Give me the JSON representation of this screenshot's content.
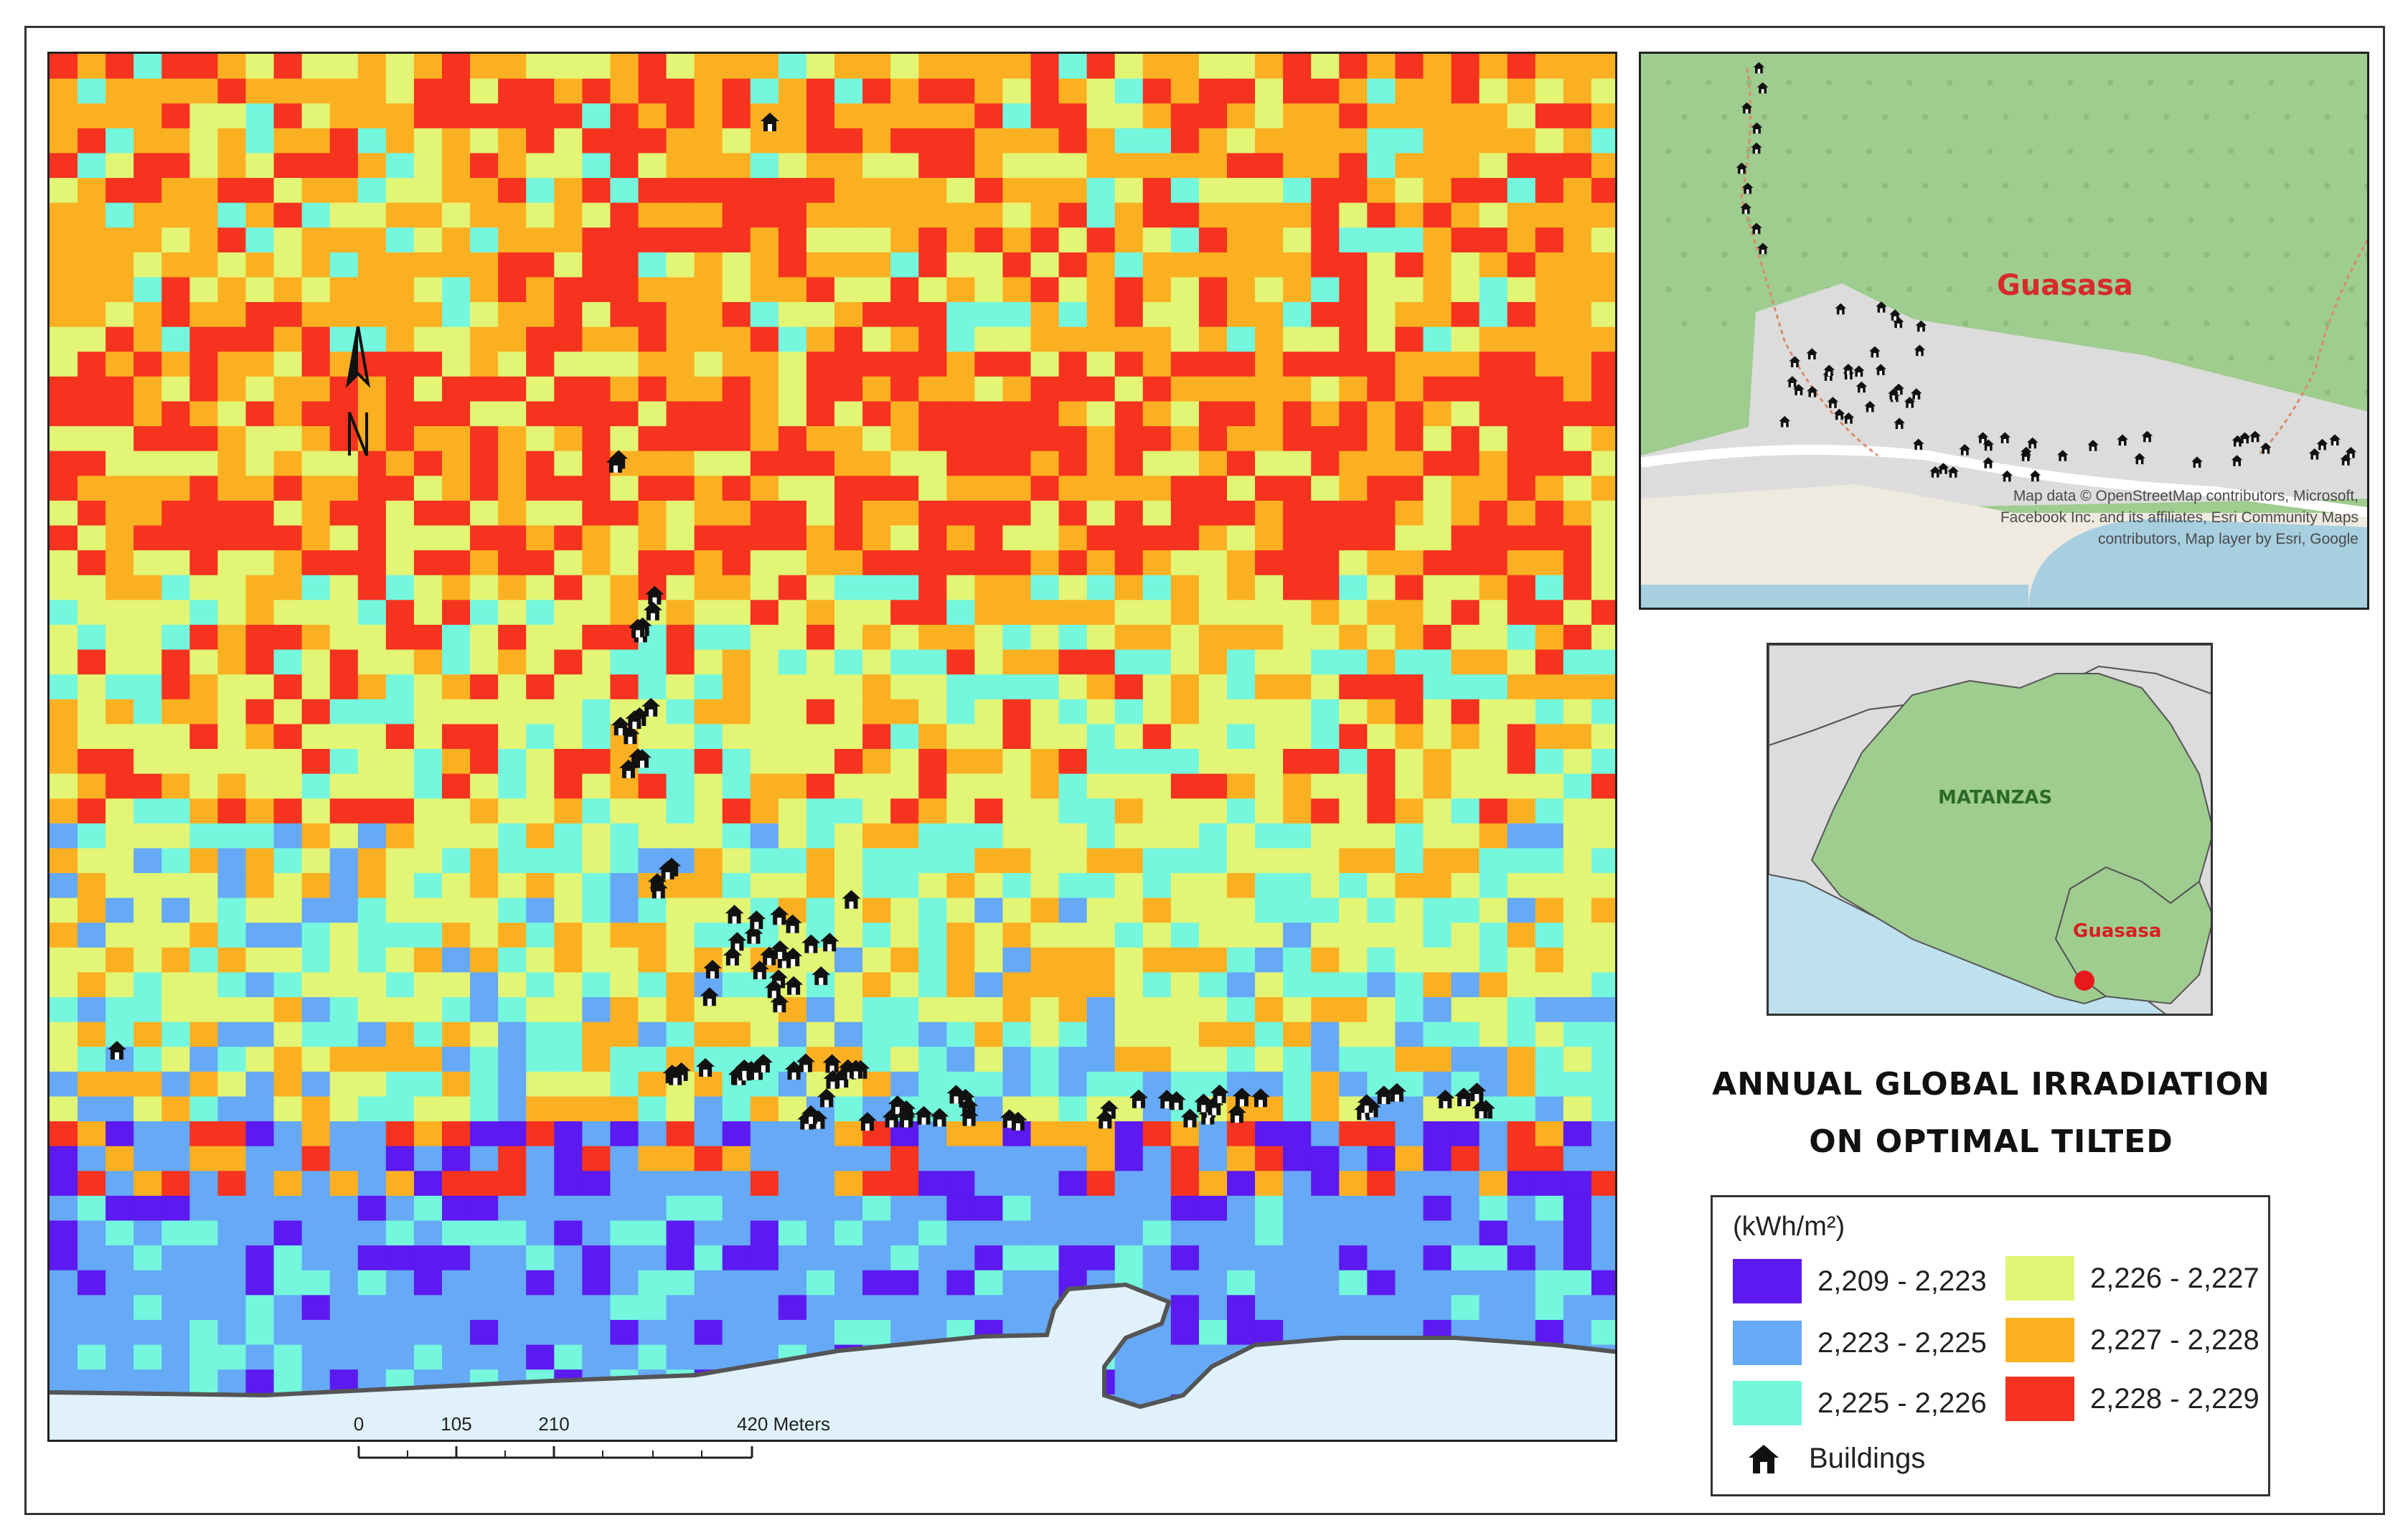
{
  "title": {
    "line1": "ANNUAL GLOBAL IRRADIATION",
    "line2": "ON OPTIMAL TILTED"
  },
  "legend": {
    "unit": "(kWh/m²)",
    "classes": [
      {
        "label": "2,209 - 2,223",
        "color": "#5c19f0"
      },
      {
        "label": "2,223 - 2,225",
        "color": "#66a9f6"
      },
      {
        "label": "2,225 - 2,226",
        "color": "#74f7dd"
      },
      {
        "label": "2,226 - 2,227",
        "color": "#e2f575"
      },
      {
        "label": "2,227 - 2,228",
        "color": "#fbb022"
      },
      {
        "label": "2,228 - 2,229",
        "color": "#f5331f"
      }
    ],
    "buildings_label": "Buildings"
  },
  "scale_bar": {
    "ticks": [
      "0",
      "105",
      "210",
      "420 Meters"
    ]
  },
  "inset_local": {
    "place_label": "Guasasa",
    "attribution": "Map data © OpenStreetMap contributors, Microsoft, Facebook Inc. and its affiliates, Esri Community Maps contributors, Map layer by Esri, Google"
  },
  "inset_region": {
    "province_label": "MATANZAS",
    "site_label": "Guasasa"
  },
  "colors": {
    "land": "#9fcc8f",
    "sea": "#bfe0ee",
    "coast_line": "#555555",
    "site_marker": "#e8191c"
  }
}
